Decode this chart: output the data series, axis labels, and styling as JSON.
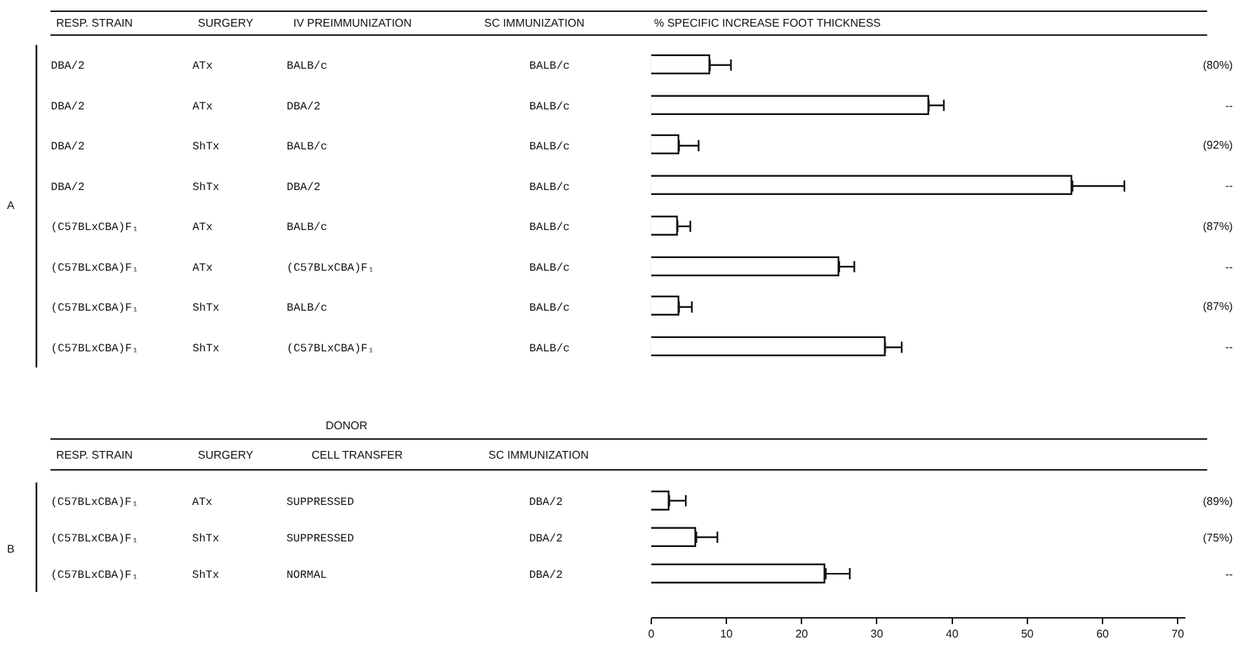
{
  "chart_data": [
    {
      "type": "bar",
      "orientation": "horizontal",
      "title": "RESP. STRAIN   SURGERY   IV PREIMMUNIZATION   SC IMMUNIZATION   % SPECIFIC INCREASE FOOT THICKNESS",
      "ylabel": "A",
      "categories": [
        "DBA/2   ATx   BALB/c   BALB/c",
        "DBA/2   ATx   DBA/2   BALB/c",
        "DBA/2   ShTx   BALB/c   BALB/c",
        "DBA/2   ShTx   DBA/2   BALB/c",
        "(C57BLxCBA)F₁   ATx   BALB/c   BALB/c",
        "(C57BLxCBA)F₁   ATx   (C57BLxCBA)F₁   BALB/c",
        "(C57BLxCBA)F₁   ShTx   BALB/c   BALB/c",
        "(C57BLxCBA)F₁   ShTx   (C57BLxCBA)F₁   BALB/c"
      ],
      "values": [
        7.8,
        36.9,
        3.7,
        56,
        3.5,
        25,
        3.7,
        31.1
      ],
      "color": "#ffffff",
      "errors": [
        [
          7.8,
          10.6
        ],
        [
          36.9,
          38.9
        ],
        [
          3.7,
          6.3
        ],
        [
          56,
          62.9
        ],
        [
          3.5,
          5.2
        ],
        [
          25,
          27
        ],
        [
          3.7,
          5.4
        ],
        [
          31.1,
          33.3
        ]
      ],
      "annotations": [
        "(80%)",
        "--",
        "(92%)",
        "--",
        "(87%)",
        "--",
        "(87%)",
        "--"
      ],
      "xlim": [
        0,
        70
      ],
      "xticks": [
        0,
        10,
        20,
        30,
        40,
        50,
        60,
        70
      ],
      "tick_labels": "y"
    },
    {
      "type": "bar",
      "orientation": "horizontal",
      "title": "RESP. STRAIN   SURGERY   CELL TRANSFER   SC IMMUNIZATION",
      "ylabel": "B",
      "categories": [
        "(C57BLxCBA)F₁   ATx   SUPPRESSED   DBA/2",
        "(C57BLxCBA)F₁   ShTx   SUPPRESSED   DBA/2",
        "(C57BLxCBA)F₁   ShTx   NORMAL   DBA/2"
      ],
      "values": [
        2.4,
        6.0,
        23.2
      ],
      "color": "#ffffff",
      "errors": [
        [
          2.4,
          4.6
        ],
        [
          6.0,
          8.8
        ],
        [
          23.2,
          26.4
        ]
      ],
      "annotations": [
        "DONOR",
        "(89%)",
        "(75%)",
        "--"
      ],
      "xlim": [
        0,
        71
      ],
      "xticks": [
        0,
        10,
        20,
        30,
        40,
        50,
        60,
        70
      ]
    }
  ]
}
